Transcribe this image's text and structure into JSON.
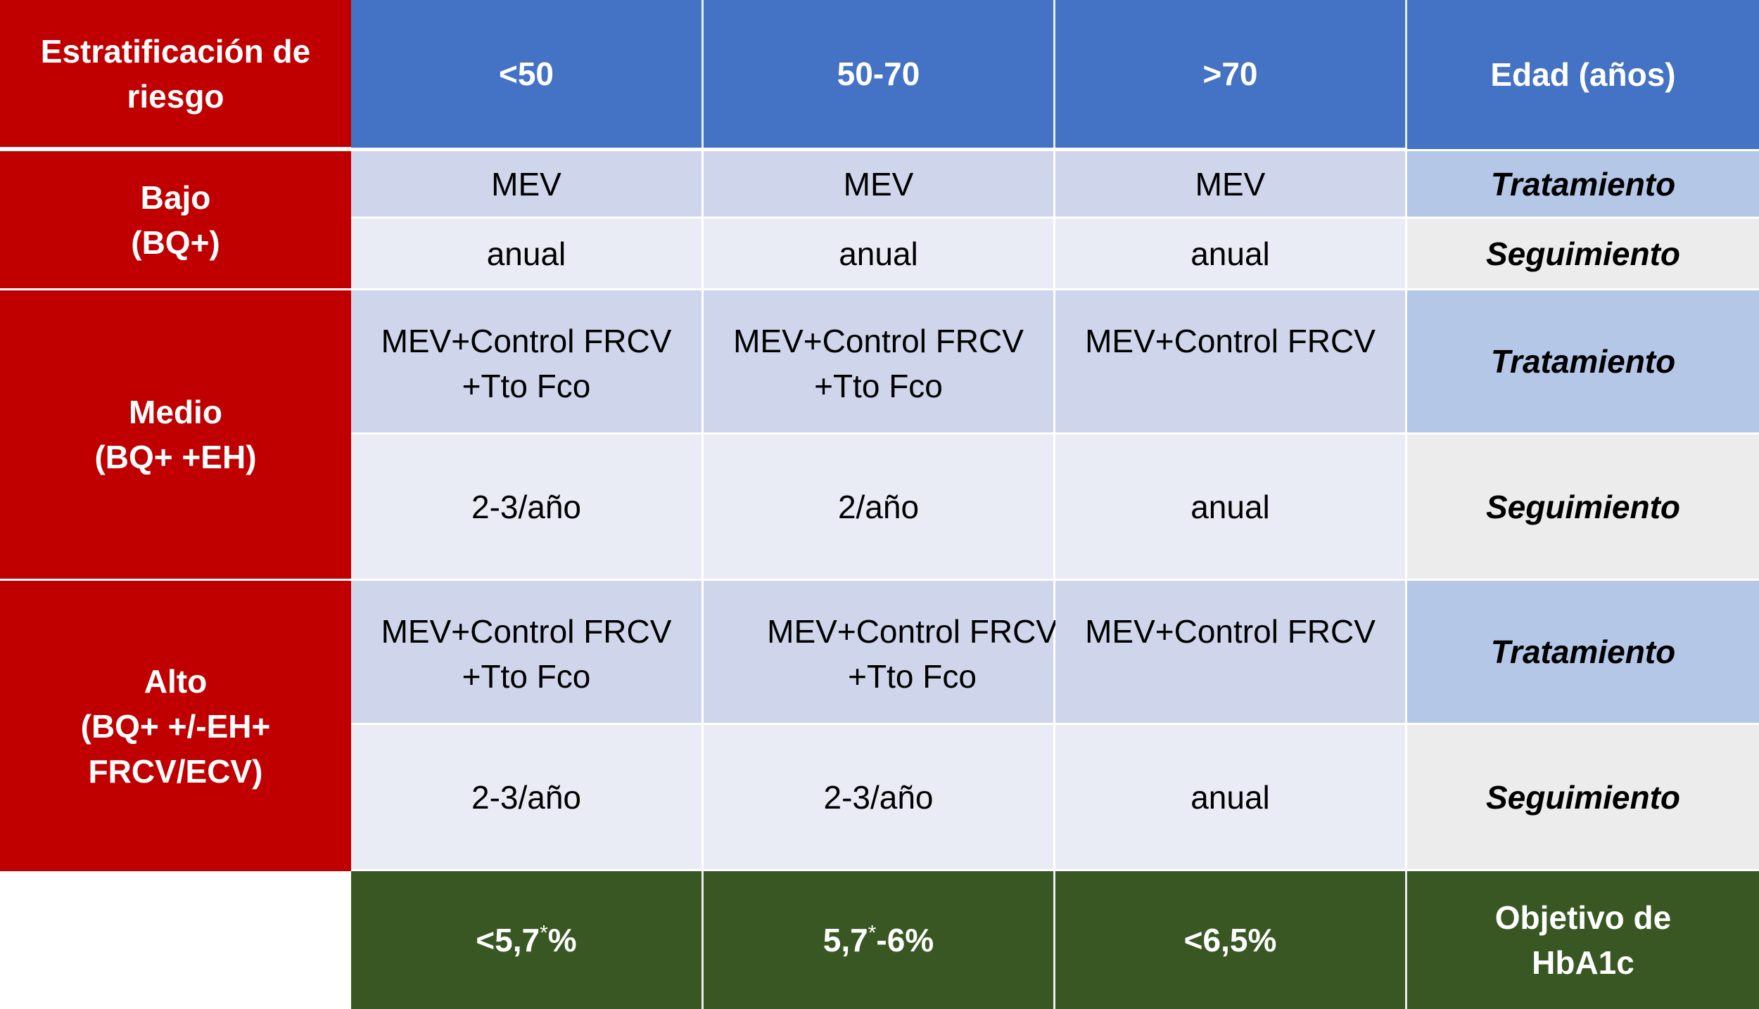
{
  "header": {
    "stratification": [
      "Estratificación de",
      "riesgo"
    ],
    "col1": "<50",
    "col2": "50-70",
    "col3": ">70",
    "age_label": "Edad (años)"
  },
  "labels": {
    "treatment": "Tratamiento",
    "followup": "Seguimiento"
  },
  "rows": {
    "bajo": {
      "name": [
        "Bajo",
        "(BQ+)"
      ],
      "treatment": [
        "MEV",
        "MEV",
        "MEV"
      ],
      "followup": [
        "anual",
        "anual",
        "anual"
      ]
    },
    "medio": {
      "name": [
        "Medio",
        "(BQ+ +EH)"
      ],
      "treatment_line1": [
        "MEV+Control FRCV",
        "MEV+Control FRCV",
        "MEV+Control FRCV"
      ],
      "treatment_line2": [
        "+Tto Fco",
        "+Tto Fco",
        ""
      ],
      "followup": [
        "2-3/año",
        "2/año",
        "anual"
      ]
    },
    "alto": {
      "name": [
        "Alto",
        "(BQ+ +/-EH+",
        "FRCV/ECV)"
      ],
      "treatment_line1": [
        "MEV+Control FRCV",
        "MEV+Control FRCV",
        "MEV+Control FRCV"
      ],
      "treatment_line2": [
        "+Tto Fco",
        "+Tto Fco",
        ""
      ],
      "followup": [
        "2-3/año",
        "2-3/año",
        "anual"
      ]
    }
  },
  "objective": {
    "label": [
      "Objetivo de",
      "HbA1c"
    ],
    "c1_pre": "<5,7",
    "c1_star": "*",
    "c1_post": "%",
    "c2_pre": "5,7",
    "c2_star": "*",
    "c2_post": "-6%",
    "c3": "<6,5%"
  }
}
